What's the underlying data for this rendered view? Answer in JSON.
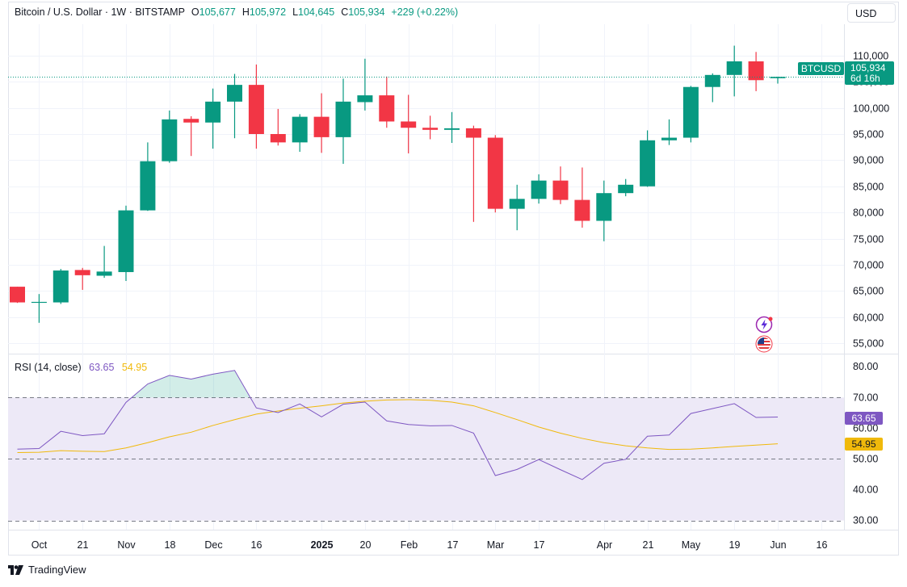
{
  "header": {
    "symbol": "Bitcoin / U.S. Dollar · 1W · BITSTAMP",
    "open_label": "O",
    "open": "105,677",
    "high_label": "H",
    "high": "105,972",
    "low_label": "L",
    "low": "104,645",
    "close_label": "C",
    "close": "105,934",
    "change": "+229 (+0.22%)",
    "currency_button": "USD"
  },
  "price_badge": {
    "ticker": "BTCUSD",
    "price": "105,934",
    "countdown": "6d 16h"
  },
  "rsi": {
    "title": "RSI (14, close)",
    "value": "63.65",
    "ma_value": "54.95"
  },
  "footer": {
    "brand": "TradingView"
  },
  "colors": {
    "up": "#089981",
    "down": "#f23645",
    "rsi": "#7e57c2",
    "rsi_ma": "#f0b90b",
    "band": "#ede9f7"
  },
  "icons": [
    "lightning-icon",
    "us-flag-icon",
    "tradingview-logo-icon"
  ],
  "chart_data": [
    {
      "type": "candlestick",
      "title": "Bitcoin / U.S. Dollar · 1W · BITSTAMP",
      "ylim": [
        53000,
        116000
      ],
      "y_ticks": [
        "110,000",
        "105,000",
        "100,000",
        "95,000",
        "90,000",
        "85,000",
        "80,000",
        "75,000",
        "70,000",
        "65,000",
        "60,000",
        "55,000"
      ],
      "x_tick_labels": [
        {
          "i": 1,
          "label": "Oct"
        },
        {
          "i": 3,
          "label": "21"
        },
        {
          "i": 5,
          "label": "Nov"
        },
        {
          "i": 7,
          "label": "18"
        },
        {
          "i": 9,
          "label": "Dec"
        },
        {
          "i": 11,
          "label": "16"
        },
        {
          "i": 14,
          "label": "2025",
          "bold": true
        },
        {
          "i": 16,
          "label": "20"
        },
        {
          "i": 18,
          "label": "Feb"
        },
        {
          "i": 20,
          "label": "17"
        },
        {
          "i": 22,
          "label": "Mar"
        },
        {
          "i": 24,
          "label": "17"
        },
        {
          "i": 27,
          "label": "Apr"
        },
        {
          "i": 29,
          "label": "21"
        },
        {
          "i": 31,
          "label": "May"
        },
        {
          "i": 33,
          "label": "19"
        },
        {
          "i": 35,
          "label": "Jun"
        },
        {
          "i": 37,
          "label": "16"
        }
      ],
      "candles": [
        {
          "o": 65800,
          "h": 65800,
          "l": 62700,
          "c": 62800
        },
        {
          "o": 62800,
          "h": 64400,
          "l": 58900,
          "c": 62900
        },
        {
          "o": 62800,
          "h": 69200,
          "l": 62500,
          "c": 68900
        },
        {
          "o": 69000,
          "h": 69400,
          "l": 65200,
          "c": 68000
        },
        {
          "o": 67900,
          "h": 73600,
          "l": 67500,
          "c": 68700
        },
        {
          "o": 68600,
          "h": 81300,
          "l": 66900,
          "c": 80400
        },
        {
          "o": 80400,
          "h": 93400,
          "l": 80300,
          "c": 89800
        },
        {
          "o": 89800,
          "h": 99500,
          "l": 89500,
          "c": 97800
        },
        {
          "o": 97900,
          "h": 98400,
          "l": 90800,
          "c": 97200
        },
        {
          "o": 97200,
          "h": 103700,
          "l": 92200,
          "c": 101200
        },
        {
          "o": 101200,
          "h": 106500,
          "l": 94200,
          "c": 104400
        },
        {
          "o": 104400,
          "h": 108300,
          "l": 92200,
          "c": 95000
        },
        {
          "o": 95000,
          "h": 99800,
          "l": 92800,
          "c": 93400
        },
        {
          "o": 93400,
          "h": 98800,
          "l": 91600,
          "c": 98300
        },
        {
          "o": 98300,
          "h": 102800,
          "l": 91400,
          "c": 94400
        },
        {
          "o": 94400,
          "h": 105600,
          "l": 89300,
          "c": 101200
        },
        {
          "o": 101100,
          "h": 109400,
          "l": 99500,
          "c": 102400
        },
        {
          "o": 102400,
          "h": 106000,
          "l": 96200,
          "c": 97400
        },
        {
          "o": 97400,
          "h": 102500,
          "l": 91300,
          "c": 96200
        },
        {
          "o": 96200,
          "h": 98500,
          "l": 94000,
          "c": 95800
        },
        {
          "o": 95800,
          "h": 99200,
          "l": 93300,
          "c": 96100
        },
        {
          "o": 96100,
          "h": 96600,
          "l": 78200,
          "c": 94300
        },
        {
          "o": 94300,
          "h": 94800,
          "l": 80000,
          "c": 80700
        },
        {
          "o": 80700,
          "h": 85300,
          "l": 76600,
          "c": 82600
        },
        {
          "o": 82600,
          "h": 87300,
          "l": 81700,
          "c": 86100
        },
        {
          "o": 86100,
          "h": 88800,
          "l": 81600,
          "c": 82400
        },
        {
          "o": 82400,
          "h": 88600,
          "l": 77100,
          "c": 78400
        },
        {
          "o": 78400,
          "h": 86100,
          "l": 74500,
          "c": 83700
        },
        {
          "o": 83700,
          "h": 86400,
          "l": 83100,
          "c": 85300
        },
        {
          "o": 85000,
          "h": 95700,
          "l": 84900,
          "c": 93800
        },
        {
          "o": 93800,
          "h": 97800,
          "l": 92900,
          "c": 94300
        },
        {
          "o": 94300,
          "h": 104200,
          "l": 93400,
          "c": 104000
        },
        {
          "o": 104000,
          "h": 106600,
          "l": 101100,
          "c": 106300
        },
        {
          "o": 106300,
          "h": 111900,
          "l": 102200,
          "c": 108900
        },
        {
          "o": 108900,
          "h": 110700,
          "l": 103200,
          "c": 105300
        },
        {
          "o": 105677,
          "h": 105972,
          "l": 104645,
          "c": 105934
        }
      ],
      "last_price": 105934
    },
    {
      "type": "line",
      "title": "RSI (14, close)",
      "ylim": [
        27,
        84
      ],
      "y_ticks": [
        "80.00",
        "70.00",
        "60.00",
        "50.00",
        "40.00",
        "30.00"
      ],
      "band": [
        30,
        70
      ],
      "series": [
        {
          "values": [
            53.2,
            53.4,
            59.0,
            57.6,
            58.2,
            68.4,
            74.4,
            77.2,
            76.0,
            77.6,
            78.8,
            66.6,
            65.1,
            67.9,
            63.7,
            67.8,
            68.5,
            62.4,
            61.2,
            60.8,
            60.9,
            58.4,
            44.6,
            46.6,
            49.8,
            46.5,
            43.3,
            48.6,
            49.9,
            57.4,
            57.8,
            64.8,
            66.4,
            68.0,
            63.5,
            63.65
          ]
        },
        {
          "values": [
            52.1,
            52.2,
            52.7,
            52.5,
            52.4,
            53.6,
            55.3,
            57.2,
            58.7,
            60.9,
            62.8,
            64.6,
            65.6,
            66.5,
            67.3,
            68.2,
            68.8,
            69.2,
            69.3,
            69.1,
            68.5,
            67.3,
            65.1,
            62.8,
            60.4,
            58.4,
            56.7,
            55.3,
            54.3,
            53.6,
            53.1,
            53.2,
            53.6,
            54.1,
            54.5,
            54.95
          ]
        }
      ]
    }
  ]
}
